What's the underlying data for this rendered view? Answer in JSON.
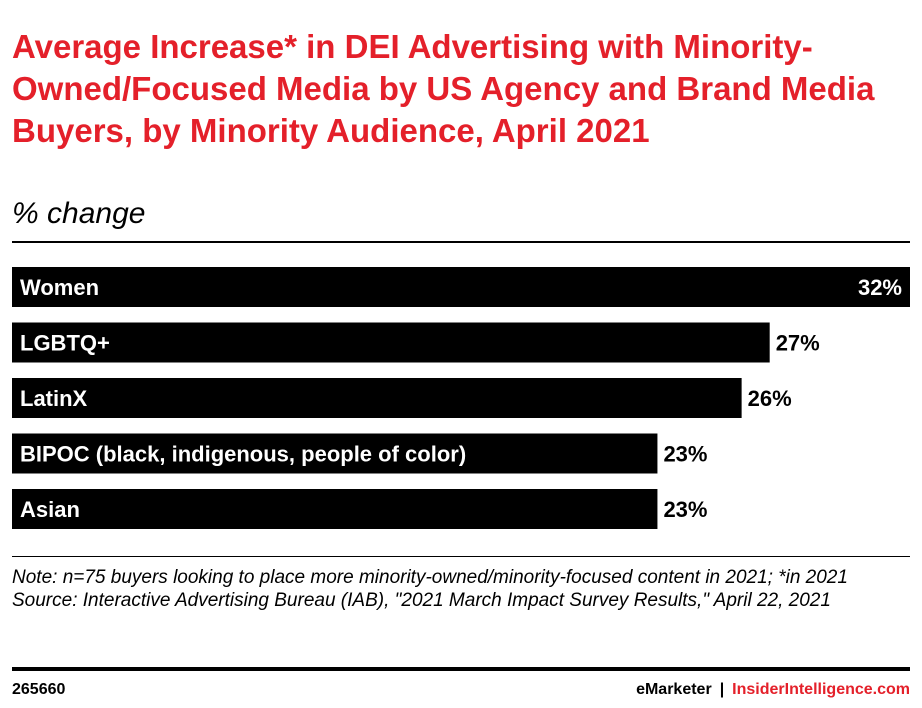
{
  "header": {
    "title": "Average Increase* in DEI Advertising with Minority-Owned/Focused Media by US Agency and Brand Media Buyers, by Minority Audience, April 2021",
    "subtitle": "% change"
  },
  "chart_data": {
    "type": "bar",
    "orientation": "horizontal",
    "categories": [
      "Women",
      "LGBTQ+",
      "LatinX",
      "BIPOC (black, indigenous, people of color)",
      "Asian"
    ],
    "values": [
      32,
      27,
      26,
      23,
      23
    ],
    "value_labels": [
      "32%",
      "27%",
      "26%",
      "23%",
      "23%"
    ],
    "bar_color": "#000000",
    "title": "Average Increase* in DEI Advertising with Minority-Owned/Focused Media by US Agency and Brand Media Buyers, by Minority Audience, April 2021",
    "xlabel": "",
    "ylabel": "% change",
    "xlim": [
      0,
      32
    ],
    "grid": false,
    "legend": "none"
  },
  "notes": {
    "note": "Note: n=75 buyers looking to place more minority-owned/minority-focused content in 2021; *in 2021",
    "source": "Source: Interactive Advertising Bureau (IAB), \"2021 March Impact Survey Results,\" April 22, 2021"
  },
  "footer": {
    "chart_id": "265660",
    "brand_left": "eMarketer",
    "separator": "|",
    "brand_right": "InsiderIntelligence.com"
  },
  "colors": {
    "accent": "#e4202a",
    "bar": "#000000",
    "text": "#000000"
  }
}
